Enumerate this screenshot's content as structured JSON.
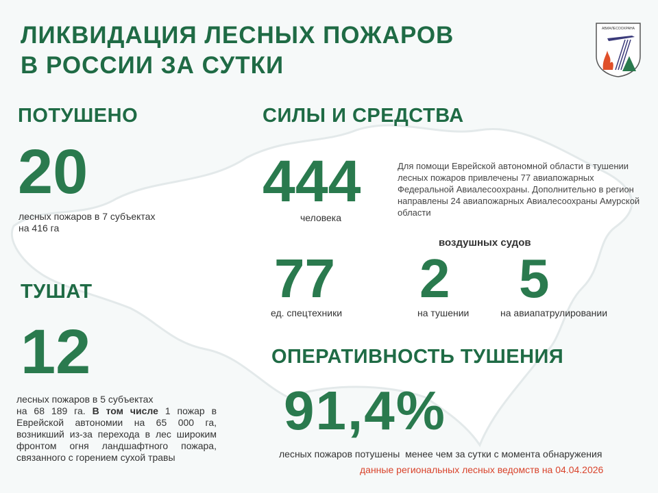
{
  "header": {
    "title_line1": "ЛИКВИДАЦИЯ ЛЕСНЫХ ПОЖАРОВ",
    "title_line2": "В РОССИИ ЗА СУТКИ",
    "logo_text": "АВИАЛЕСООХРАНА"
  },
  "extinguished": {
    "heading": "ПОТУШЕНО",
    "value": "20",
    "line1": "лесных пожаров в 7 субъектах",
    "line2": "на 416 га"
  },
  "active": {
    "heading": "ТУШАТ",
    "value": "12",
    "line1": "лесных пожаров в 5 субъектах",
    "text_before_bold": "на 68 189 га.",
    "bold": "В том числе",
    "text_after_bold": "1 пожар в Еврейской автономии на 65 000 га, возникший из-за перехода в лес широким фронтом огня ландшафтного пожара, связанного с горением сухой травы"
  },
  "forces": {
    "heading": "СИЛЫ И СРЕДСТВА",
    "people_value": "444",
    "people_label": "человека",
    "note": "Для помощи Еврейской автономной области в тушении лесных пожаров привлечены 77 авиапожарных Федеральной Авиалесоохраны. Дополнительно в регион направлены 24 авиапожарных Авиалесоохраны Амурской области",
    "equipment_value": "77",
    "equipment_label": "ед. спецтехники",
    "aircraft_heading": "воздушных судов",
    "aircraft_fighting_value": "2",
    "aircraft_fighting_label": "на тушении",
    "aircraft_patrol_value": "5",
    "aircraft_patrol_label": "на авиапатрулировании"
  },
  "efficiency": {
    "heading": "ОПЕРАТИВНОСТЬ ТУШЕНИЯ",
    "value": "91,4%",
    "label": "лесных пожаров потушены  менее чем за сутки с момента обнаружения",
    "source": "данные региональных лесных ведомств на 04.04.2026"
  },
  "colors": {
    "green": "#2a7a4e",
    "heading_green": "#1f6b45",
    "source_red": "#d9432b"
  }
}
